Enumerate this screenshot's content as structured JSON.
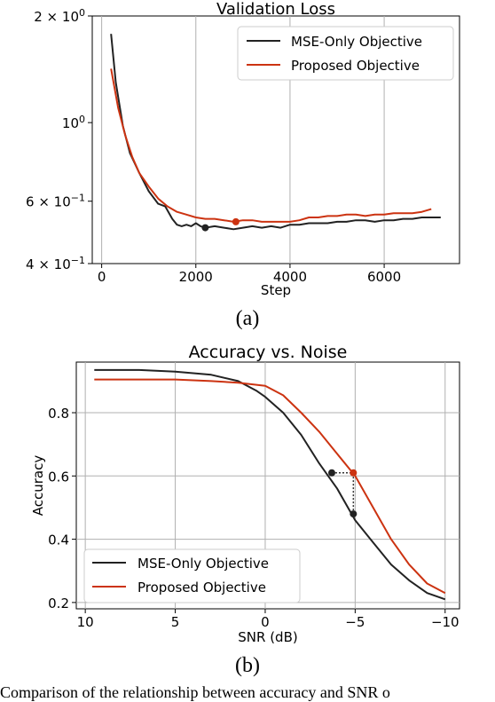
{
  "colors": {
    "mse": "#222222",
    "proposed": "#cc3311",
    "grid": "#b0b0b0"
  },
  "captions": {
    "a": "(a)",
    "b": "(b)",
    "figure_text": "Comparison of the relationship between accuracy and SNR o"
  },
  "chart_data": [
    {
      "type": "line",
      "title": "Validation Loss",
      "xlabel": "Step",
      "ylabel": "",
      "yscale": "log",
      "xlim": [
        -200,
        7600
      ],
      "ylim": [
        0.4,
        2.0
      ],
      "xticks": [
        0,
        2000,
        4000,
        6000
      ],
      "xtick_labels": [
        "0",
        "2000",
        "4000",
        "6000"
      ],
      "yticks": [
        {
          "value": 2.0,
          "base": "2 × 10",
          "exp": "0"
        },
        {
          "value": 1.0,
          "base": "10",
          "exp": "0"
        },
        {
          "value": 0.6,
          "base": "6 × 10",
          "exp": "−1"
        },
        {
          "value": 0.4,
          "base": "4 × 10",
          "exp": "−1"
        }
      ],
      "grid": "x-only",
      "legend_position": "top-right",
      "series": [
        {
          "name": "MSE-Only Objective",
          "color_key": "mse",
          "x": [
            200,
            300,
            450,
            600,
            800,
            1000,
            1200,
            1350,
            1500,
            1600,
            1700,
            1800,
            1900,
            2000,
            2100,
            2200,
            2400,
            2600,
            2800,
            3000,
            3200,
            3400,
            3600,
            3800,
            4000,
            4200,
            4400,
            4600,
            4800,
            5000,
            5200,
            5400,
            5600,
            5800,
            6000,
            6200,
            6400,
            6600,
            6800,
            7000,
            7200
          ],
          "y": [
            1.78,
            1.3,
            0.98,
            0.82,
            0.72,
            0.64,
            0.59,
            0.58,
            0.535,
            0.515,
            0.51,
            0.515,
            0.51,
            0.52,
            0.51,
            0.505,
            0.51,
            0.505,
            0.5,
            0.505,
            0.51,
            0.505,
            0.51,
            0.505,
            0.515,
            0.515,
            0.52,
            0.52,
            0.52,
            0.525,
            0.525,
            0.53,
            0.53,
            0.525,
            0.53,
            0.53,
            0.535,
            0.535,
            0.54,
            0.54,
            0.54
          ]
        },
        {
          "name": "Proposed Objective",
          "color_key": "proposed",
          "x": [
            200,
            350,
            500,
            650,
            800,
            1000,
            1200,
            1400,
            1600,
            1800,
            2000,
            2200,
            2400,
            2600,
            2800,
            3000,
            3200,
            3400,
            3600,
            3800,
            4000,
            4200,
            4400,
            4600,
            4800,
            5000,
            5200,
            5400,
            5600,
            5800,
            6000,
            6200,
            6400,
            6600,
            6800,
            7000
          ],
          "y": [
            1.42,
            1.1,
            0.92,
            0.8,
            0.72,
            0.66,
            0.61,
            0.58,
            0.56,
            0.55,
            0.54,
            0.535,
            0.535,
            0.53,
            0.525,
            0.53,
            0.53,
            0.525,
            0.525,
            0.525,
            0.525,
            0.53,
            0.54,
            0.54,
            0.545,
            0.545,
            0.55,
            0.55,
            0.545,
            0.55,
            0.55,
            0.555,
            0.555,
            0.555,
            0.56,
            0.57
          ]
        }
      ],
      "markers": [
        {
          "series": "MSE-Only Objective",
          "x": 2200,
          "y": 0.505
        },
        {
          "series": "Proposed Objective",
          "x": 2850,
          "y": 0.525
        }
      ]
    },
    {
      "type": "line",
      "title": "Accuracy vs. Noise",
      "xlabel": "SNR (dB)",
      "ylabel": "Accuracy",
      "xlim": [
        10.5,
        -10.8
      ],
      "ylim": [
        0.18,
        0.96
      ],
      "xticks": [
        10,
        5,
        0,
        -5,
        -10
      ],
      "xtick_labels": [
        "10",
        "5",
        "0",
        "−5",
        "−10"
      ],
      "yticks": [
        0.8,
        0.6,
        0.4,
        0.2
      ],
      "ytick_labels": [
        "0.8",
        "0.6",
        "0.4",
        "0.2"
      ],
      "grid": "x-and-y",
      "legend_position": "lower-left",
      "series": [
        {
          "name": "MSE-Only Objective",
          "color_key": "mse",
          "x": [
            9.5,
            7,
            5,
            3,
            1.5,
            0.5,
            0,
            -1,
            -2,
            -3,
            -4,
            -5,
            -6,
            -7,
            -8,
            -9,
            -10
          ],
          "y": [
            0.935,
            0.935,
            0.93,
            0.92,
            0.9,
            0.87,
            0.85,
            0.8,
            0.73,
            0.64,
            0.56,
            0.46,
            0.39,
            0.32,
            0.27,
            0.23,
            0.21
          ]
        },
        {
          "name": "Proposed Objective",
          "color_key": "proposed",
          "x": [
            9.5,
            7,
            5,
            3,
            1.5,
            0,
            -1,
            -2,
            -3,
            -4,
            -5,
            -6,
            -7,
            -8,
            -9,
            -10
          ],
          "y": [
            0.905,
            0.905,
            0.905,
            0.9,
            0.895,
            0.885,
            0.855,
            0.8,
            0.74,
            0.67,
            0.6,
            0.5,
            0.4,
            0.32,
            0.26,
            0.23
          ]
        }
      ],
      "markers": [
        {
          "series": "MSE-Only Objective",
          "x": -3.7,
          "y": 0.61
        },
        {
          "series": "MSE-Only Objective",
          "x": -4.9,
          "y": 0.48
        },
        {
          "series": "Proposed Objective",
          "x": -4.9,
          "y": 0.61
        }
      ]
    }
  ]
}
